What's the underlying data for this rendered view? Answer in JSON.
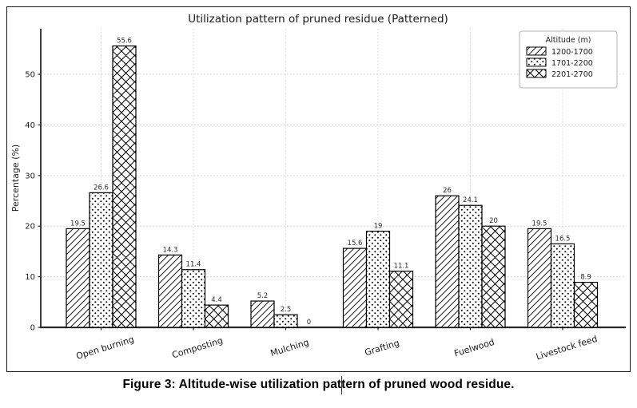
{
  "figure": {
    "caption": "Figure 3: Altitude-wise utilization pattern of pruned wood residue."
  },
  "chart_data": {
    "type": "bar",
    "title": "Utilization pattern of pruned residue (Patterned)",
    "categories": [
      "Open burning",
      "Composting",
      "Mulching",
      "Grafting",
      "Fuelwood",
      "Livestock feed"
    ],
    "series": [
      {
        "name": "1200-1700",
        "pattern": "diagonal-hatch",
        "values": [
          19.5,
          14.3,
          5.2,
          15.6,
          26,
          19.5
        ]
      },
      {
        "name": "1701-2200",
        "pattern": "dots",
        "values": [
          26.6,
          11.4,
          2.5,
          19,
          24.1,
          16.5
        ]
      },
      {
        "name": "2201-2700",
        "pattern": "crosshatch",
        "values": [
          55.6,
          4.4,
          0,
          11.1,
          20,
          8.9
        ]
      }
    ],
    "xlabel": "",
    "ylabel": "Percentage (%)",
    "yticks": [
      0,
      10,
      20,
      30,
      40,
      50
    ],
    "ylim": [
      0,
      59
    ],
    "grid": true,
    "legend_title": "Altitude (m)",
    "legend_position": "top-right",
    "bar_fill_color": "#ffffff",
    "bar_edge_color": "#000000",
    "grid_color": "#c9c9c9",
    "axis_color": "#262626",
    "text_color": "#1a1a1a",
    "value_label_color": "#2b2b2b"
  }
}
